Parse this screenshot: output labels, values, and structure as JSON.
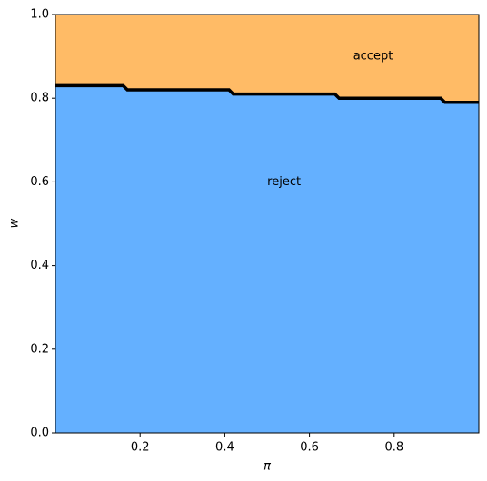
{
  "chart_data": {
    "type": "area",
    "x_label": "π",
    "y_label": "w",
    "x": [
      0,
      0.16,
      0.17,
      0.41,
      0.42,
      0.66,
      0.67,
      0.91,
      0.92,
      1
    ],
    "series": [
      {
        "values": [
          0.83,
          0.83,
          0.82,
          0.82,
          0.81,
          0.81,
          0.8,
          0.8,
          0.79,
          0.79
        ],
        "color": "#000000"
      }
    ],
    "regions": [
      {
        "name": "accept",
        "color": "#ffbb66"
      },
      {
        "name": "reject",
        "color": "#64b0ff"
      }
    ],
    "xlim": [
      0,
      1
    ],
    "ylim": [
      0,
      1
    ],
    "xticks": [
      0.2,
      0.4,
      0.6,
      0.8
    ],
    "yticks": [
      {
        "value": 0,
        "label": "0.0"
      },
      0.2,
      0.4,
      0.6,
      0.8,
      {
        "value": 1,
        "label": "1.0"
      }
    ]
  }
}
